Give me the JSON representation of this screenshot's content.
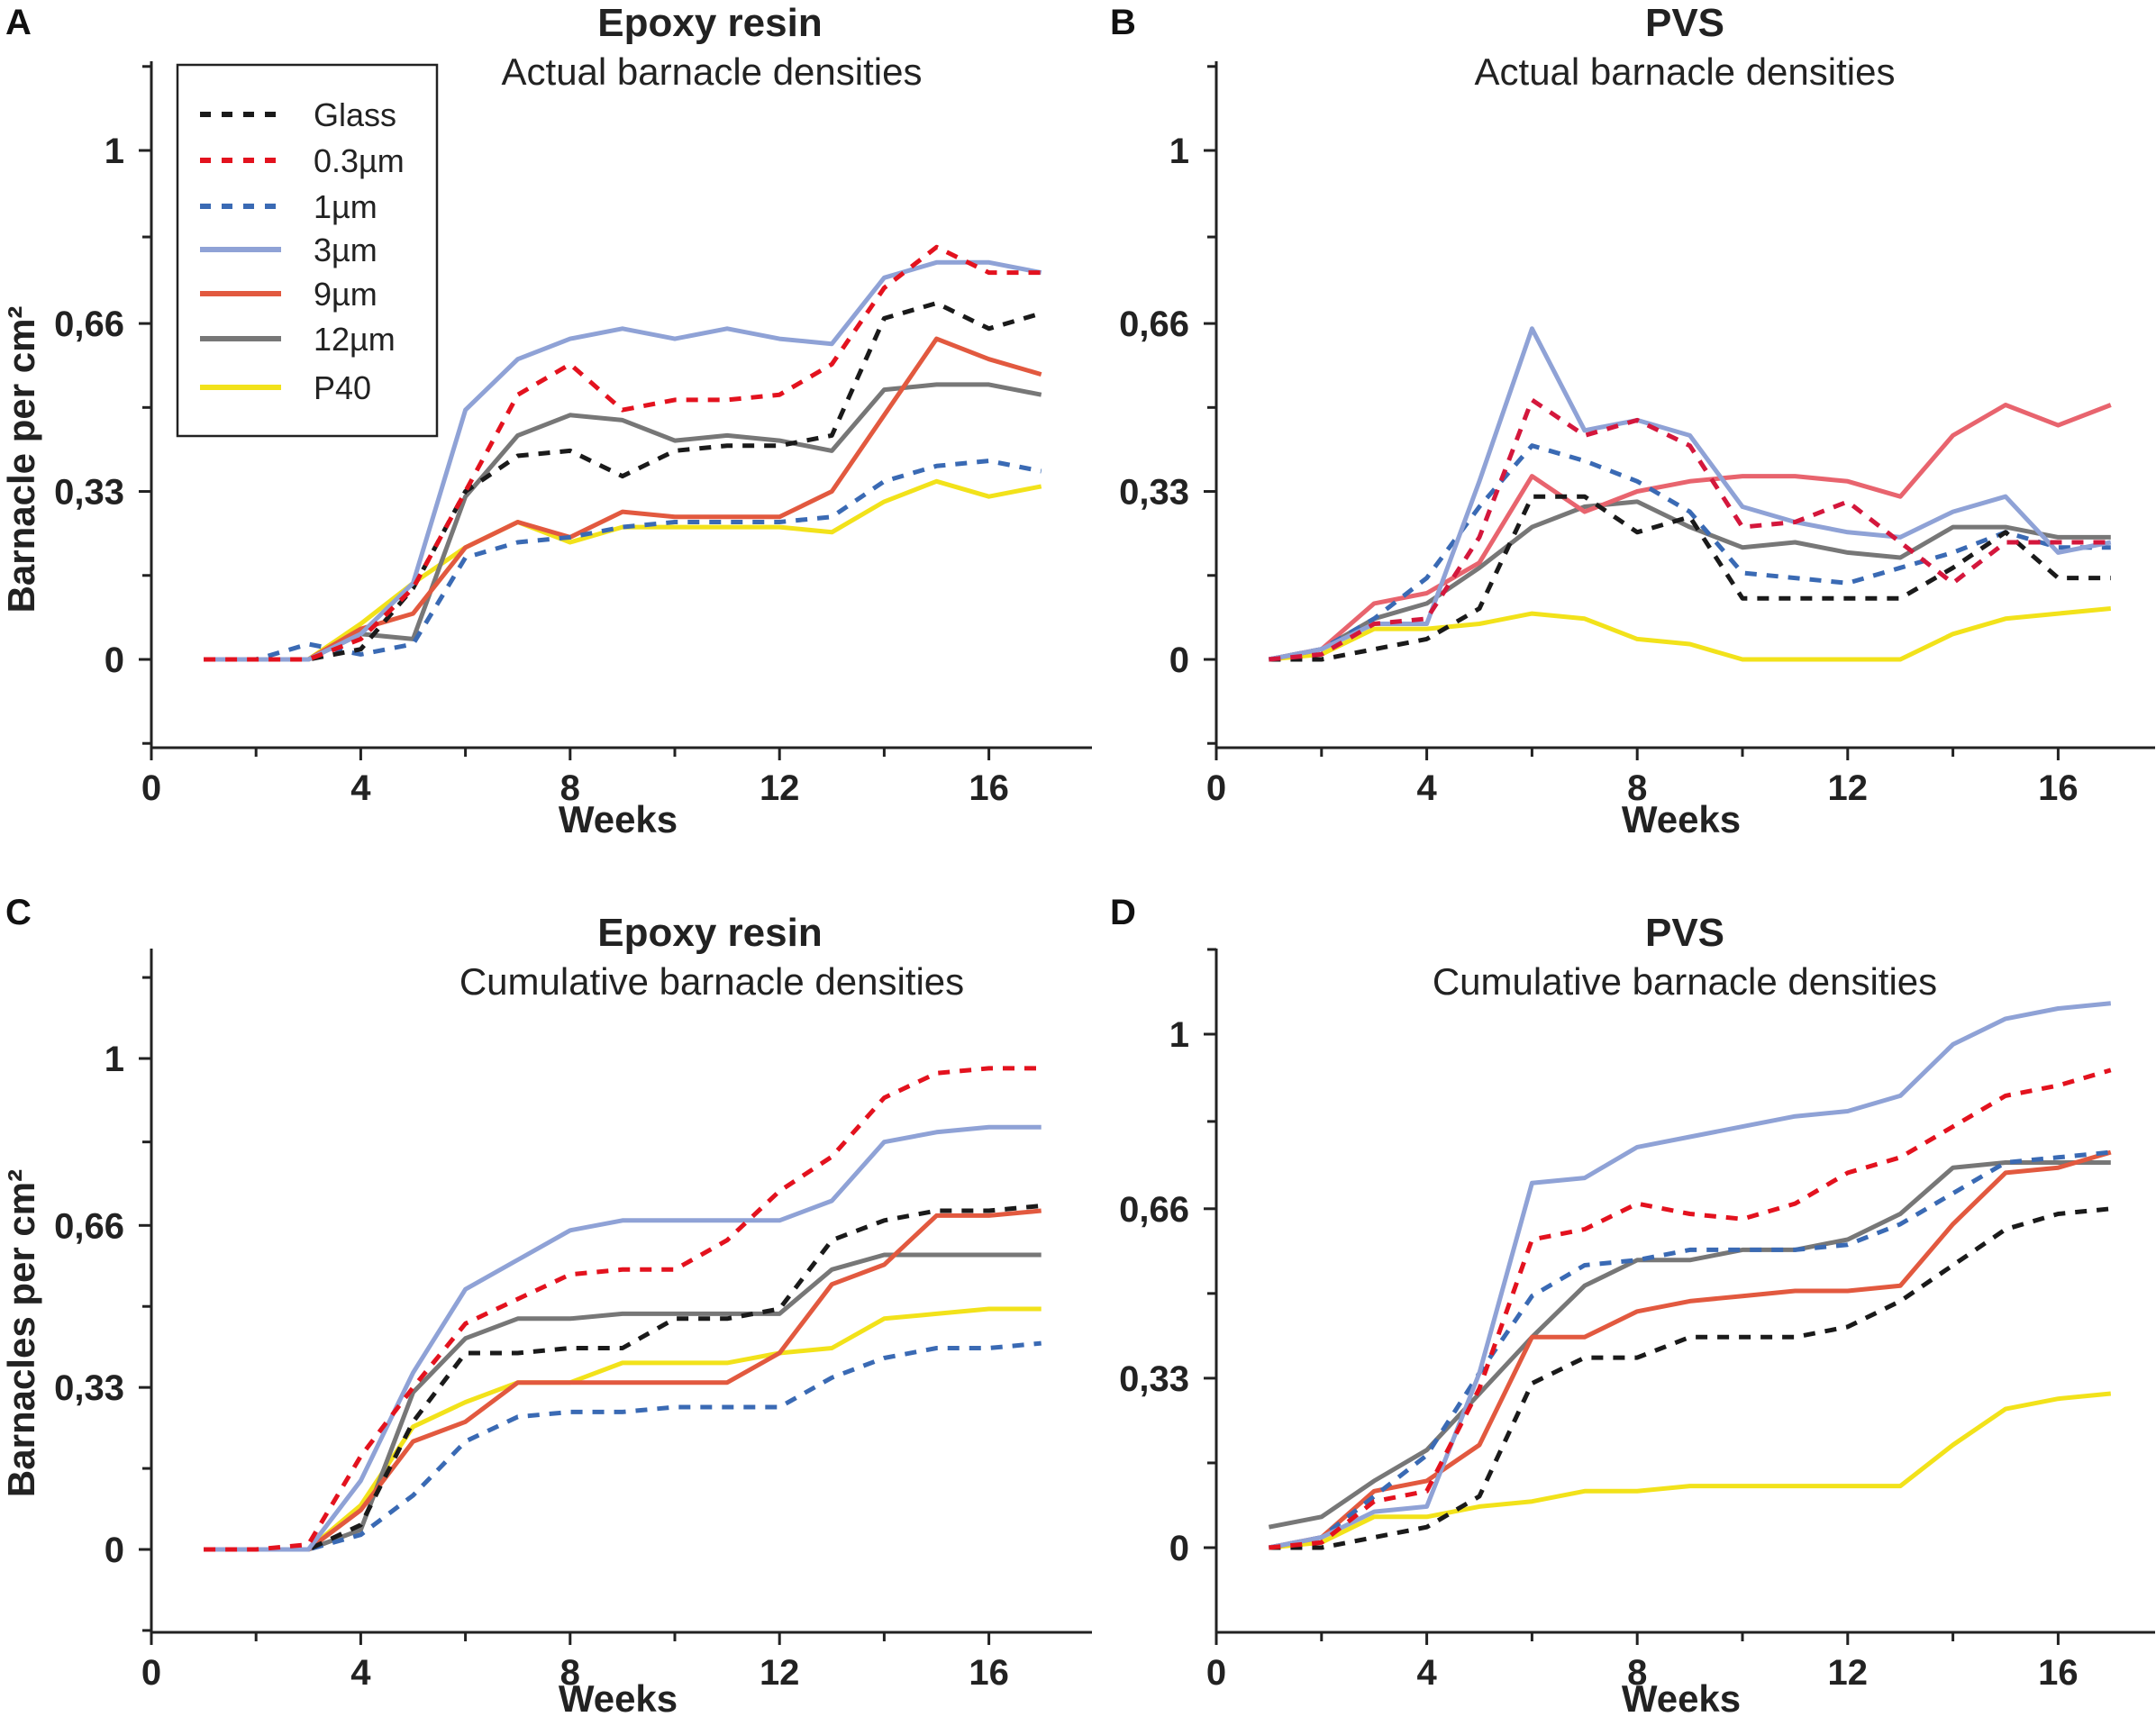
{
  "chart_data": [
    {
      "type": "line",
      "panel_label": "A",
      "title": "Epoxy resin",
      "subtitle": "Actual barnacle densities",
      "xlabel": "Weeks",
      "ylabel": "Barnacle per cm²",
      "xlim": [
        0,
        18
      ],
      "ylim": [
        -0.15,
        1.17
      ],
      "xticks": [
        0,
        4,
        8,
        12,
        16
      ],
      "xtick_labels": [
        "0",
        "4",
        "8",
        "12",
        "16"
      ],
      "yticks": [
        0,
        0.33,
        0.66,
        1
      ],
      "ytick_labels": [
        "0",
        "0,33",
        "0,66",
        "1"
      ],
      "legend": true,
      "x": [
        1,
        2,
        3,
        4,
        5,
        6,
        7,
        8,
        9,
        10,
        11,
        12,
        13,
        14,
        15,
        16,
        17
      ],
      "series": [
        {
          "name": "Glass",
          "color": "#1a1a1a",
          "dashed": true,
          "values": [
            0,
            0,
            0,
            0.02,
            0.14,
            0.33,
            0.4,
            0.41,
            0.36,
            0.41,
            0.42,
            0.42,
            0.44,
            0.67,
            0.7,
            0.65,
            0.68
          ]
        },
        {
          "name": "0.3µm",
          "color": "#e3121e",
          "dashed": true,
          "values": [
            0,
            0,
            0,
            0.04,
            0.14,
            0.33,
            0.52,
            0.58,
            0.49,
            0.51,
            0.51,
            0.52,
            0.58,
            0.73,
            0.81,
            0.76,
            0.76
          ]
        },
        {
          "name": "1µm",
          "color": "#3a6ab4",
          "dashed": true,
          "values": [
            0,
            0,
            0.03,
            0.01,
            0.03,
            0.2,
            0.23,
            0.24,
            0.26,
            0.27,
            0.27,
            0.27,
            0.28,
            0.35,
            0.38,
            0.39,
            0.37
          ]
        },
        {
          "name": "3µm",
          "color": "#8fa2d6",
          "dashed": false,
          "values": [
            0,
            0,
            0,
            0.05,
            0.15,
            0.49,
            0.59,
            0.63,
            0.65,
            0.63,
            0.65,
            0.63,
            0.62,
            0.75,
            0.78,
            0.78,
            0.76
          ]
        },
        {
          "name": "9µm",
          "color": "#e2593f",
          "dashed": false,
          "values": [
            0,
            0,
            0,
            0.06,
            0.09,
            0.22,
            0.27,
            0.24,
            0.29,
            0.28,
            0.28,
            0.28,
            0.33,
            0.48,
            0.63,
            0.59,
            0.56
          ]
        },
        {
          "name": "12µm",
          "color": "#777777",
          "dashed": false,
          "values": [
            0,
            0,
            0,
            0.05,
            0.04,
            0.32,
            0.44,
            0.48,
            0.47,
            0.43,
            0.44,
            0.43,
            0.41,
            0.53,
            0.54,
            0.54,
            0.52
          ]
        },
        {
          "name": "P40",
          "color": "#f2e21a",
          "dashed": false,
          "values": [
            0,
            0,
            0,
            0.07,
            0.15,
            0.22,
            0.27,
            0.23,
            0.26,
            0.26,
            0.26,
            0.26,
            0.25,
            0.31,
            0.35,
            0.32,
            0.34
          ]
        }
      ]
    },
    {
      "type": "line",
      "panel_label": "B",
      "title": "PVS",
      "subtitle": "Actual barnacle densities",
      "xlabel": "Weeks",
      "ylabel": "",
      "xlim": [
        0,
        18
      ],
      "ylim": [
        -0.15,
        1.17
      ],
      "xticks": [
        0,
        4,
        8,
        12,
        16
      ],
      "xtick_labels": [
        "0",
        "4",
        "8",
        "12",
        "16"
      ],
      "yticks": [
        0,
        0.33,
        0.66,
        1
      ],
      "ytick_labels": [
        "0",
        "0,33",
        "0,66",
        "1"
      ],
      "legend": false,
      "x": [
        1,
        2,
        3,
        4,
        5,
        6,
        7,
        8,
        9,
        10,
        11,
        12,
        13,
        14,
        15,
        16,
        17
      ],
      "series": [
        {
          "name": "Glass",
          "color": "#1a1a1a",
          "dashed": true,
          "values": [
            0,
            0,
            0.02,
            0.04,
            0.1,
            0.32,
            0.32,
            0.25,
            0.28,
            0.12,
            0.12,
            0.12,
            0.12,
            0.18,
            0.25,
            0.16,
            0.16
          ]
        },
        {
          "name": "0.3µm",
          "color": "#d4173c",
          "dashed": true,
          "values": [
            0,
            0.01,
            0.07,
            0.08,
            0.24,
            0.51,
            0.44,
            0.47,
            0.42,
            0.26,
            0.27,
            0.31,
            0.23,
            0.15,
            0.23,
            0.23,
            0.23
          ]
        },
        {
          "name": "1µm",
          "color": "#3a6ab4",
          "dashed": true,
          "values": [
            0,
            0.02,
            0.08,
            0.16,
            0.3,
            0.42,
            0.39,
            0.35,
            0.29,
            0.17,
            0.16,
            0.15,
            0.18,
            0.21,
            0.25,
            0.22,
            0.22
          ]
        },
        {
          "name": "3µm",
          "color": "#8fa2d6",
          "dashed": false,
          "values": [
            0,
            0.02,
            0.07,
            0.07,
            0.35,
            0.65,
            0.45,
            0.47,
            0.44,
            0.3,
            0.27,
            0.25,
            0.24,
            0.29,
            0.32,
            0.21,
            0.23
          ]
        },
        {
          "name": "9µm",
          "color": "#e8646e",
          "dashed": false,
          "values": [
            0,
            0.02,
            0.11,
            0.13,
            0.19,
            0.36,
            0.29,
            0.33,
            0.35,
            0.36,
            0.36,
            0.35,
            0.32,
            0.44,
            0.5,
            0.46,
            0.5
          ]
        },
        {
          "name": "12µm",
          "color": "#777777",
          "dashed": false,
          "values": [
            0,
            0.02,
            0.08,
            0.11,
            0.18,
            0.26,
            0.3,
            0.31,
            0.26,
            0.22,
            0.23,
            0.21,
            0.2,
            0.26,
            0.26,
            0.24,
            0.24
          ]
        },
        {
          "name": "P40",
          "color": "#f2e21a",
          "dashed": false,
          "values": [
            0,
            0.01,
            0.06,
            0.06,
            0.07,
            0.09,
            0.08,
            0.04,
            0.03,
            0,
            0,
            0,
            0,
            0.05,
            0.08,
            0.09,
            0.1
          ]
        }
      ]
    },
    {
      "type": "line",
      "panel_label": "C",
      "title": "Epoxy resin",
      "subtitle": "Cumulative barnacle densities",
      "xlabel": "Weeks",
      "ylabel": "Barnacles per cm²",
      "xlim": [
        0,
        18
      ],
      "ylim": [
        -0.15,
        1.17
      ],
      "xticks": [
        0,
        4,
        8,
        12,
        16
      ],
      "xtick_labels": [
        "0",
        "4",
        "8",
        "12",
        "16"
      ],
      "yticks": [
        0,
        0.33,
        0.66,
        1
      ],
      "ytick_labels": [
        "0",
        "0,33",
        "0,66",
        "1"
      ],
      "legend": false,
      "x": [
        1,
        2,
        3,
        4,
        5,
        6,
        7,
        8,
        9,
        10,
        11,
        12,
        13,
        14,
        15,
        16,
        17
      ],
      "series": [
        {
          "name": "Glass",
          "color": "#1a1a1a",
          "dashed": true,
          "values": [
            0,
            0,
            0,
            0.05,
            0.26,
            0.4,
            0.4,
            0.41,
            0.41,
            0.47,
            0.47,
            0.49,
            0.63,
            0.67,
            0.69,
            0.69,
            0.7
          ]
        },
        {
          "name": "0.3µm",
          "color": "#e3121e",
          "dashed": true,
          "values": [
            0,
            0,
            0.01,
            0.19,
            0.33,
            0.46,
            0.51,
            0.56,
            0.57,
            0.57,
            0.63,
            0.73,
            0.8,
            0.92,
            0.97,
            0.98,
            0.98
          ]
        },
        {
          "name": "1µm",
          "color": "#3a6ab4",
          "dashed": true,
          "values": [
            0,
            0,
            0,
            0.03,
            0.11,
            0.22,
            0.27,
            0.28,
            0.28,
            0.29,
            0.29,
            0.29,
            0.35,
            0.39,
            0.41,
            0.41,
            0.42
          ]
        },
        {
          "name": "3µm",
          "color": "#8fa2d6",
          "dashed": false,
          "values": [
            0,
            0,
            0,
            0.14,
            0.36,
            0.53,
            0.59,
            0.65,
            0.67,
            0.67,
            0.67,
            0.67,
            0.71,
            0.83,
            0.85,
            0.86,
            0.86
          ]
        },
        {
          "name": "9µm",
          "color": "#e2593f",
          "dashed": false,
          "values": [
            0,
            0,
            0,
            0.08,
            0.22,
            0.26,
            0.34,
            0.34,
            0.34,
            0.34,
            0.34,
            0.4,
            0.54,
            0.58,
            0.68,
            0.68,
            0.69
          ]
        },
        {
          "name": "12µm",
          "color": "#777777",
          "dashed": false,
          "values": [
            0,
            0,
            0,
            0.04,
            0.32,
            0.43,
            0.47,
            0.47,
            0.48,
            0.48,
            0.48,
            0.48,
            0.57,
            0.6,
            0.6,
            0.6,
            0.6
          ]
        },
        {
          "name": "P40",
          "color": "#f2e21a",
          "dashed": false,
          "values": [
            0,
            0,
            0,
            0.09,
            0.25,
            0.3,
            0.34,
            0.34,
            0.38,
            0.38,
            0.38,
            0.4,
            0.41,
            0.47,
            0.48,
            0.49,
            0.49
          ]
        }
      ]
    },
    {
      "type": "line",
      "panel_label": "D",
      "title": "PVS",
      "subtitle": "Cumulative barnacle densities",
      "xlabel": "Weeks",
      "ylabel": "",
      "xlim": [
        0,
        18
      ],
      "ylim": [
        -0.15,
        1.17
      ],
      "xticks": [
        0,
        4,
        8,
        12,
        16
      ],
      "xtick_labels": [
        "0",
        "4",
        "8",
        "12",
        "16"
      ],
      "yticks": [
        0,
        0.33,
        0.66,
        1
      ],
      "ytick_labels": [
        "0",
        "0,33",
        "0,66",
        "1"
      ],
      "legend": false,
      "x": [
        1,
        2,
        3,
        4,
        5,
        6,
        7,
        8,
        9,
        10,
        11,
        12,
        13,
        14,
        15,
        16,
        17
      ],
      "series": [
        {
          "name": "Glass",
          "color": "#1a1a1a",
          "dashed": true,
          "values": [
            0,
            0,
            0.02,
            0.04,
            0.1,
            0.32,
            0.37,
            0.37,
            0.41,
            0.41,
            0.41,
            0.43,
            0.48,
            0.55,
            0.62,
            0.65,
            0.66
          ]
        },
        {
          "name": "0.3µm",
          "color": "#e3121e",
          "dashed": true,
          "values": [
            0,
            0.01,
            0.09,
            0.11,
            0.31,
            0.6,
            0.62,
            0.67,
            0.65,
            0.64,
            0.67,
            0.73,
            0.76,
            0.82,
            0.88,
            0.9,
            0.93
          ]
        },
        {
          "name": "1µm",
          "color": "#3a6ab4",
          "dashed": true,
          "values": [
            0,
            0.02,
            0.1,
            0.18,
            0.34,
            0.49,
            0.55,
            0.56,
            0.58,
            0.58,
            0.58,
            0.59,
            0.63,
            0.69,
            0.75,
            0.76,
            0.77
          ]
        },
        {
          "name": "3µm",
          "color": "#8fa2d6",
          "dashed": false,
          "values": [
            0,
            0.02,
            0.07,
            0.08,
            0.34,
            0.71,
            0.72,
            0.78,
            0.8,
            0.82,
            0.84,
            0.85,
            0.88,
            0.98,
            1.03,
            1.05,
            1.06
          ]
        },
        {
          "name": "9µm",
          "color": "#e2593f",
          "dashed": false,
          "values": [
            0,
            0.02,
            0.11,
            0.13,
            0.2,
            0.41,
            0.41,
            0.46,
            0.48,
            0.49,
            0.5,
            0.5,
            0.51,
            0.63,
            0.73,
            0.74,
            0.77
          ]
        },
        {
          "name": "12µm",
          "color": "#777777",
          "dashed": false,
          "values": [
            0.04,
            0.06,
            0.13,
            0.19,
            0.3,
            0.41,
            0.51,
            0.56,
            0.56,
            0.58,
            0.58,
            0.6,
            0.65,
            0.74,
            0.75,
            0.75,
            0.75
          ]
        },
        {
          "name": "P40",
          "color": "#f2e21a",
          "dashed": false,
          "values": [
            0,
            0.01,
            0.06,
            0.06,
            0.08,
            0.09,
            0.11,
            0.11,
            0.12,
            0.12,
            0.12,
            0.12,
            0.12,
            0.2,
            0.27,
            0.29,
            0.3
          ]
        }
      ]
    }
  ]
}
